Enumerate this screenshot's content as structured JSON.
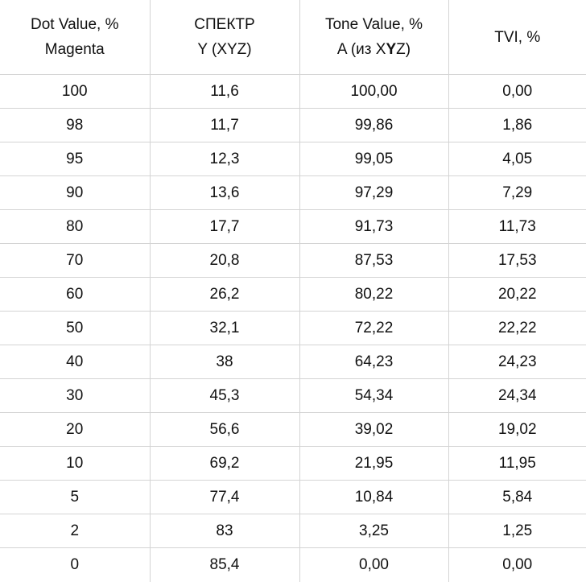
{
  "headers": [
    {
      "line1": "Dot Value, %",
      "line2": "Magenta"
    },
    {
      "line1": "СПЕКТР",
      "line2": "Y (XYZ)"
    },
    {
      "line1": "Tone Value, %",
      "line2_pre": "A (из X",
      "line2_bold": "Y",
      "line2_post": "Z)"
    },
    {
      "line1": "TVI, %"
    }
  ],
  "rows": [
    [
      "100",
      "11,6",
      "100,00",
      "0,00"
    ],
    [
      "98",
      "11,7",
      "99,86",
      "1,86"
    ],
    [
      "95",
      "12,3",
      "99,05",
      "4,05"
    ],
    [
      "90",
      "13,6",
      "97,29",
      "7,29"
    ],
    [
      "80",
      "17,7",
      "91,73",
      "11,73"
    ],
    [
      "70",
      "20,8",
      "87,53",
      "17,53"
    ],
    [
      "60",
      "26,2",
      "80,22",
      "20,22"
    ],
    [
      "50",
      "32,1",
      "72,22",
      "22,22"
    ],
    [
      "40",
      "38",
      "64,23",
      "24,23"
    ],
    [
      "30",
      "45,3",
      "54,34",
      "24,34"
    ],
    [
      "20",
      "56,6",
      "39,02",
      "19,02"
    ],
    [
      "10",
      "69,2",
      "21,95",
      "11,95"
    ],
    [
      "5",
      "77,4",
      "10,84",
      "5,84"
    ],
    [
      "2",
      "83",
      "3,25",
      "1,25"
    ],
    [
      "0",
      "85,4",
      "0,00",
      "0,00"
    ]
  ]
}
